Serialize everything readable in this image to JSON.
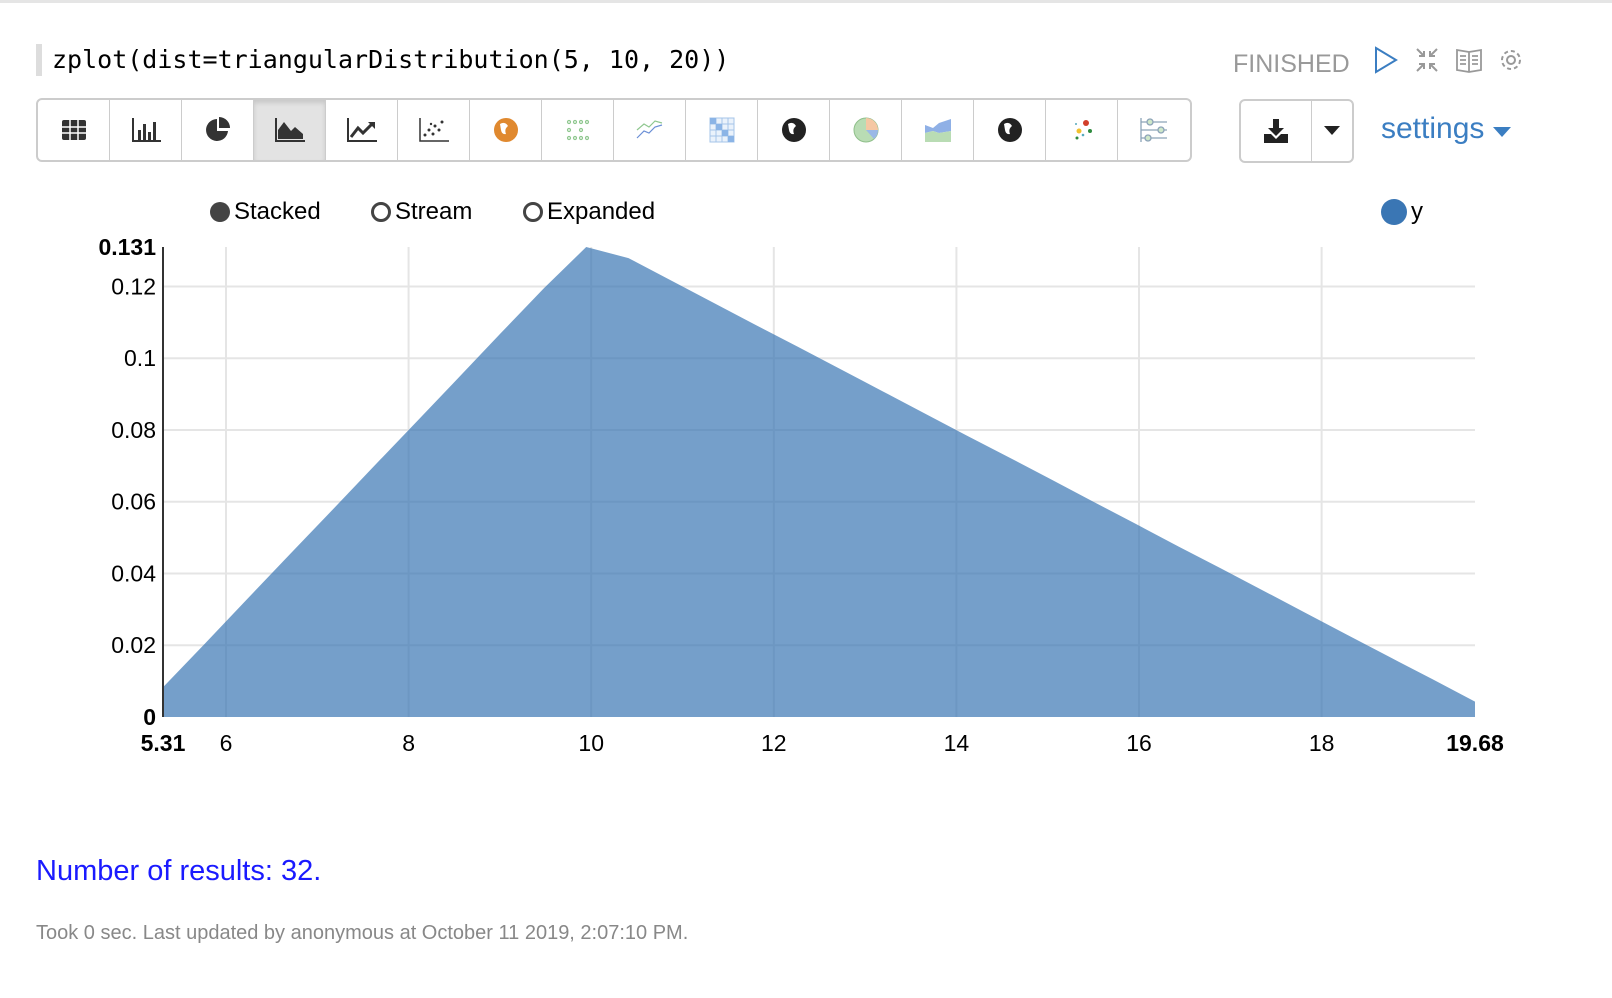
{
  "paragraph": {
    "code": "zplot(dist=triangularDistribution(5, 10, 20))",
    "status": "FINISHED",
    "controls": [
      "run-icon",
      "collapse-icon",
      "book-icon",
      "gear-icon"
    ]
  },
  "toolbar": {
    "buttons": [
      "table",
      "bar-chart",
      "pie-chart",
      "area-chart",
      "line-chart",
      "scatter-chart",
      "map",
      "heatmap",
      "line-chart-2",
      "matrix",
      "globe",
      "pie",
      "area",
      "globe-2",
      "bubble",
      "sliders"
    ],
    "active": "area-chart",
    "download_icon": "download-icon",
    "settings_label": "settings"
  },
  "legend": {
    "modes": [
      "Stacked",
      "Stream",
      "Expanded"
    ],
    "selected_mode": "Stacked",
    "series_name": "y",
    "series_color": "#3a76b4"
  },
  "chart_data": {
    "type": "area",
    "xlabel": "",
    "ylabel": "",
    "xlim": [
      5.31,
      19.68
    ],
    "ylim": [
      0,
      0.131
    ],
    "x_ticks": [
      "5.31",
      "6",
      "8",
      "10",
      "12",
      "14",
      "16",
      "18",
      "19.68"
    ],
    "y_ticks": [
      "0",
      "0.02",
      "0.04",
      "0.06",
      "0.08",
      "0.1",
      "0.12",
      "0.131"
    ],
    "grid": true,
    "legend": "top-right",
    "series": [
      {
        "name": "y",
        "color": "#3a76b4",
        "x": [
          5.31,
          5.774,
          6.237,
          6.701,
          7.164,
          7.628,
          8.091,
          8.555,
          9.018,
          9.482,
          9.945,
          10.409,
          10.873,
          11.336,
          11.8,
          12.263,
          12.727,
          13.19,
          13.654,
          14.117,
          14.581,
          15.045,
          15.508,
          15.972,
          16.435,
          16.899,
          17.362,
          17.826,
          18.289,
          18.753,
          19.216,
          19.68
        ],
        "y": [
          0.0083,
          0.0206,
          0.033,
          0.0454,
          0.0577,
          0.0701,
          0.0824,
          0.0948,
          0.1072,
          0.1195,
          0.131,
          0.1279,
          0.1217,
          0.1155,
          0.1093,
          0.1032,
          0.097,
          0.0908,
          0.0846,
          0.0784,
          0.0723,
          0.0661,
          0.0599,
          0.0537,
          0.0475,
          0.0414,
          0.0352,
          0.029,
          0.0228,
          0.0166,
          0.0105,
          0.0043
        ]
      }
    ]
  },
  "results": "Number of results: 32.",
  "footer": "Took 0 sec. Last updated by anonymous at October 11 2019, 2:07:10 PM."
}
